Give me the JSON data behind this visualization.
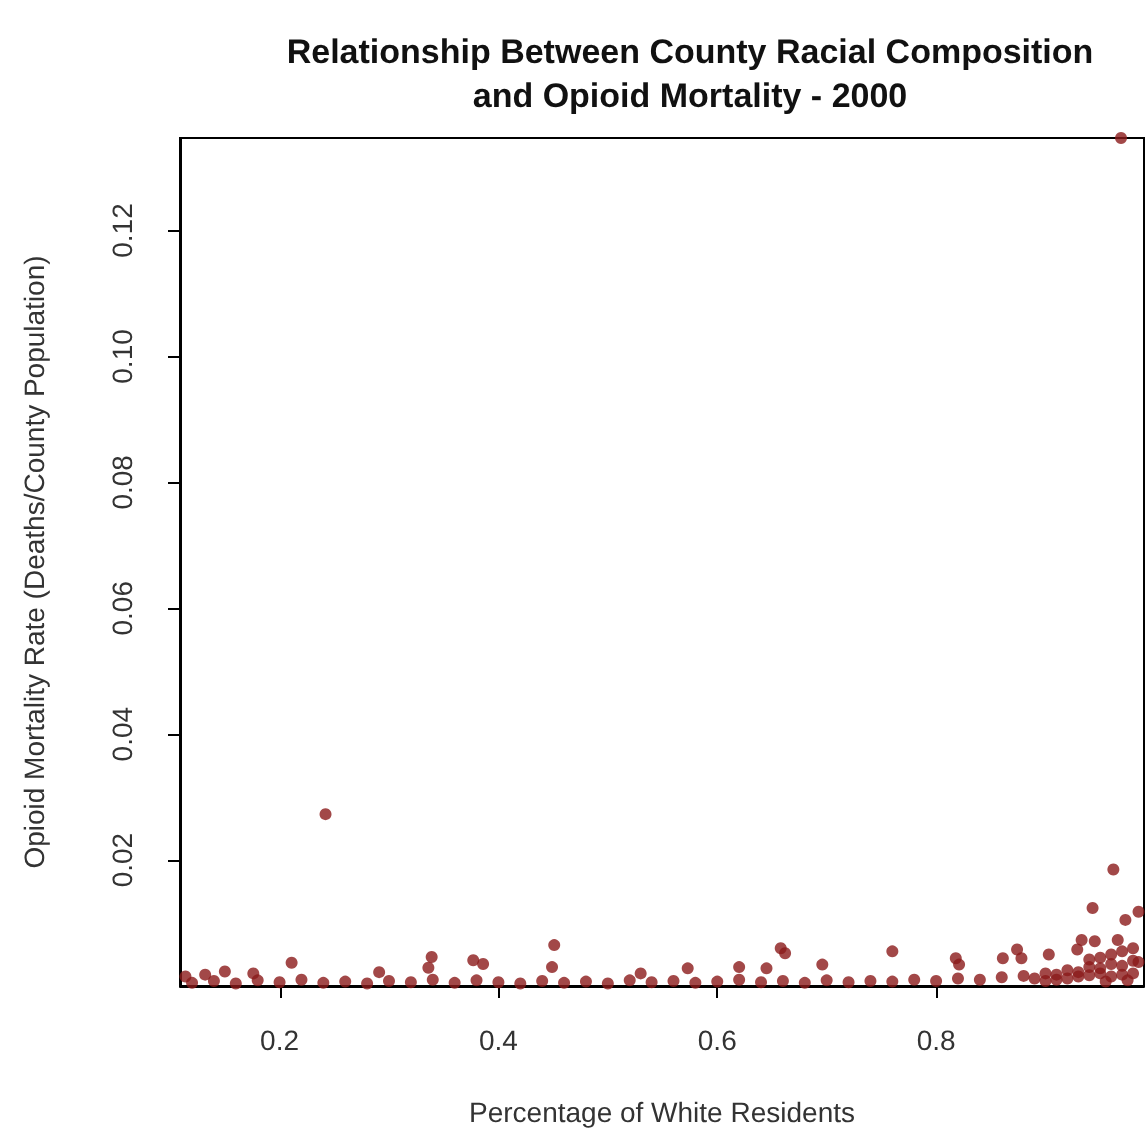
{
  "chart_data": {
    "type": "scatter",
    "title": "Relationship Between County Racial Composition\nand Opioid Mortality - 2000",
    "xlabel": "Percentage of White Residents",
    "ylabel": "Opioid Mortality Rate (Deaths/County Population)",
    "xlim": [
      0.109,
      0.99
    ],
    "ylim": [
      0,
      0.1347
    ],
    "xticks": [
      0.2,
      0.4,
      0.6,
      0.8
    ],
    "yticks": [
      0.02,
      0.04,
      0.06,
      0.08,
      {
        "value": 0.1,
        "label": "0.10"
      },
      0.12
    ],
    "grid": false,
    "marker": "circle",
    "series": [
      {
        "color": "#8b1a1a",
        "x": [
          0.114,
          0.132,
          0.15,
          0.176,
          0.211,
          0.242,
          0.291,
          0.339,
          0.336,
          0.377,
          0.386,
          0.451,
          0.449,
          0.53,
          0.573,
          0.62,
          0.645,
          0.658,
          0.662,
          0.696,
          0.76,
          0.818,
          0.821,
          0.861,
          0.874,
          0.878,
          0.903,
          0.943,
          0.962,
          0.973,
          0.985,
          0.933,
          0.945,
          0.966,
          0.929,
          0.969,
          0.12,
          0.14,
          0.16,
          0.18,
          0.2,
          0.22,
          0.24,
          0.26,
          0.28,
          0.3,
          0.32,
          0.34,
          0.36,
          0.38,
          0.4,
          0.42,
          0.44,
          0.46,
          0.48,
          0.5,
          0.52,
          0.54,
          0.56,
          0.58,
          0.6,
          0.62,
          0.64,
          0.66,
          0.68,
          0.7,
          0.72,
          0.74,
          0.76,
          0.78,
          0.8,
          0.82,
          0.84,
          0.86,
          0.88,
          0.89,
          0.9,
          0.91,
          0.92,
          0.93,
          0.94,
          0.95,
          0.96,
          0.97,
          0.98,
          0.985,
          0.9,
          0.91,
          0.92,
          0.93,
          0.94,
          0.95,
          0.96,
          0.97,
          0.98,
          0.95,
          0.96,
          0.97,
          0.98,
          0.94,
          0.955,
          0.975
        ],
        "values": [
          0.0015,
          0.0018,
          0.0023,
          0.002,
          0.0037,
          0.0273,
          0.0022,
          0.0046,
          0.0029,
          0.0041,
          0.0035,
          0.0065,
          0.003,
          0.002,
          0.0028,
          0.003,
          0.0028,
          0.006,
          0.0052,
          0.0034,
          0.0055,
          0.0044,
          0.0034,
          0.0044,
          0.0058,
          0.0044,
          0.005,
          0.0124,
          0.0185,
          0.0105,
          0.0118,
          0.0073,
          0.0071,
          0.0073,
          0.0058,
          0.1347,
          0.0005,
          0.0008,
          0.0004,
          0.0009,
          0.0006,
          0.001,
          0.0005,
          0.0007,
          0.0004,
          0.0008,
          0.0006,
          0.001,
          0.0005,
          0.0009,
          0.0006,
          0.0004,
          0.0008,
          0.0005,
          0.0007,
          0.0004,
          0.0009,
          0.0006,
          0.0008,
          0.0005,
          0.0007,
          0.001,
          0.0006,
          0.0008,
          0.0005,
          0.0009,
          0.0006,
          0.0008,
          0.0007,
          0.001,
          0.0008,
          0.0012,
          0.001,
          0.0014,
          0.0016,
          0.0012,
          0.002,
          0.0018,
          0.0025,
          0.0022,
          0.003,
          0.0028,
          0.0035,
          0.0032,
          0.004,
          0.0038,
          0.0008,
          0.001,
          0.0012,
          0.0015,
          0.0017,
          0.002,
          0.0015,
          0.0018,
          0.002,
          0.0045,
          0.005,
          0.0055,
          0.006,
          0.0042,
          0.0007,
          0.0009
        ]
      }
    ]
  }
}
